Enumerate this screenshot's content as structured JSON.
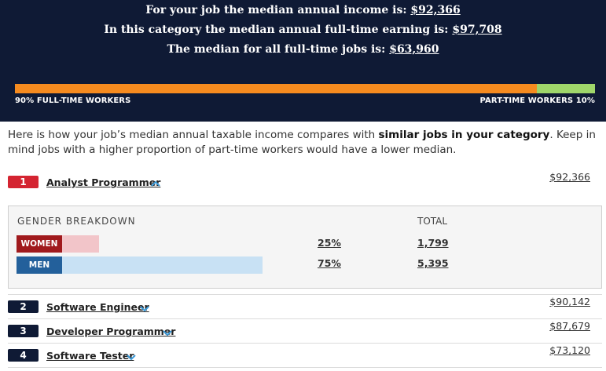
{
  "header": {
    "line1_prefix": "For your job the median annual income is: ",
    "line1_value": "$92,366",
    "line2_prefix": "In this category the median annual full-time earning is: ",
    "line2_value": "$97,708",
    "line3_prefix": "The median for all full-time jobs is: ",
    "line3_value": "$63,960"
  },
  "workers": {
    "full_time_fraction": 0.9,
    "full_time_label": "90% FULL-TIME WORKERS",
    "part_time_label": "PART-TIME WORKERS 10%"
  },
  "intro": {
    "part1": "Here is how your job’s median annual taxable income compares with ",
    "bold": "similar jobs in your category",
    "part2": ". Keep in mind jobs with a higher proportion of part-time workers would have a lower median."
  },
  "jobs": [
    {
      "rank": "1",
      "title": "Analyst Programmer",
      "amount": "$92,366",
      "expanded": true
    },
    {
      "rank": "2",
      "title": "Software Engineer",
      "amount": "$90,142",
      "expanded": false
    },
    {
      "rank": "3",
      "title": "Developer Programmer",
      "amount": "$87,679",
      "expanded": false
    },
    {
      "rank": "4",
      "title": "Software Tester",
      "amount": "$73,120",
      "expanded": false
    }
  ],
  "gender": {
    "title": "GENDER BREAKDOWN",
    "total_label": "TOTAL",
    "rows": [
      {
        "tag": "WOMEN",
        "percent": "25%",
        "fraction": 0.25,
        "total": "1,799"
      },
      {
        "tag": "MEN",
        "percent": "75%",
        "fraction": 0.75,
        "total": "5,395"
      }
    ]
  },
  "colors": {
    "header_bg": "#0f1a35",
    "full_time": "#f68b1f",
    "part_time": "#9fd66a",
    "active_rank": "#d42431",
    "chevron": "#3b9ad9"
  }
}
